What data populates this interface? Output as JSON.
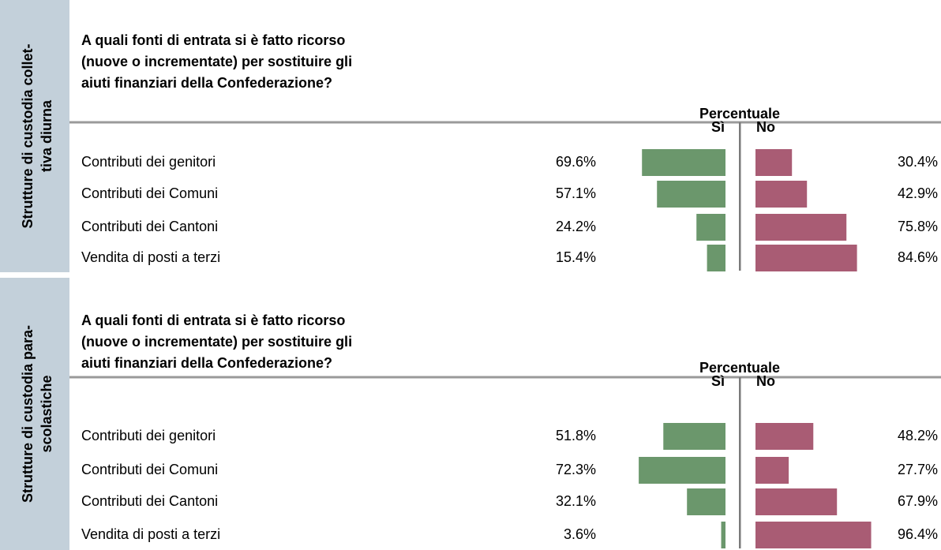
{
  "chart_data": [
    {
      "type": "diverging_bar",
      "side_label": [
        "Strutture di custodia collet-",
        "tiva diurna"
      ],
      "title": [
        "A quali fonti di entrata si è fatto ricorso",
        "(nuove o incrementate) per sostituire gli",
        "aiuti finanziari della Confederazione?"
      ],
      "axis_label": "Percentuale",
      "categories": [
        "Contributi dei genitori",
        "Contributi dei Comuni",
        "Contributi dei Cantoni",
        "Vendita di posti a terzi"
      ],
      "series": [
        {
          "name": "Sì",
          "color": "#6b976c",
          "values": [
            69.6,
            57.1,
            24.2,
            15.4
          ],
          "value_labels": [
            "69.6%",
            "57.1%",
            "24.2%",
            "15.4%"
          ]
        },
        {
          "name": "No",
          "color": "#a95c74",
          "values": [
            30.4,
            42.9,
            75.8,
            84.6
          ],
          "value_labels": [
            "30.4%",
            "42.9%",
            "75.8%",
            "84.6%"
          ]
        }
      ]
    },
    {
      "type": "diverging_bar",
      "side_label": [
        "Strutture di custodia para-",
        "scolastiche"
      ],
      "title": [
        "A quali fonti di entrata si è fatto ricorso",
        "(nuove o incrementate) per sostituire gli",
        "aiuti finanziari della Confederazione?"
      ],
      "axis_label": "Percentuale",
      "categories": [
        "Contributi dei genitori",
        "Contributi dei Comuni",
        "Contributi dei Cantoni",
        "Vendita di posti a terzi"
      ],
      "series": [
        {
          "name": "Sì",
          "color": "#6b976c",
          "values": [
            51.8,
            72.3,
            32.1,
            3.6
          ],
          "value_labels": [
            "51.8%",
            "72.3%",
            "32.1%",
            "3.6%"
          ]
        },
        {
          "name": "No",
          "color": "#a95c74",
          "values": [
            48.2,
            27.7,
            67.9,
            96.4
          ],
          "value_labels": [
            "48.2%",
            "27.7%",
            "67.9%",
            "96.4%"
          ]
        }
      ]
    }
  ]
}
